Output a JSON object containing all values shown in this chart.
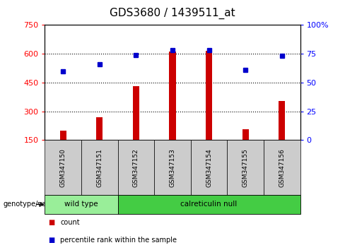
{
  "title": "GDS3680 / 1439511_at",
  "samples": [
    "GSM347150",
    "GSM347151",
    "GSM347152",
    "GSM347153",
    "GSM347154",
    "GSM347155",
    "GSM347156"
  ],
  "counts": [
    200,
    270,
    430,
    610,
    615,
    205,
    355
  ],
  "percentile_ranks": [
    60,
    66,
    74,
    78,
    78,
    61,
    73
  ],
  "ylim_left": [
    150,
    750
  ],
  "ylim_right": [
    0,
    100
  ],
  "yticks_left": [
    150,
    300,
    450,
    600,
    750
  ],
  "yticks_right": [
    0,
    25,
    50,
    75,
    100
  ],
  "bar_color": "#cc0000",
  "dot_color": "#0000cc",
  "groups": [
    {
      "label": "wild type",
      "indices": [
        0,
        1
      ],
      "color": "#99ee99"
    },
    {
      "label": "calreticulin null",
      "indices": [
        2,
        3,
        4,
        5,
        6
      ],
      "color": "#44cc44"
    }
  ],
  "group_label": "genotype/variation",
  "legend_count": "count",
  "legend_percentile": "percentile rank within the sample",
  "background_color": "#ffffff",
  "dotted_line_color": "#000000",
  "sample_box_color": "#cccccc",
  "title_fontsize": 11,
  "tick_label_fontsize": 8,
  "bar_width": 0.18
}
